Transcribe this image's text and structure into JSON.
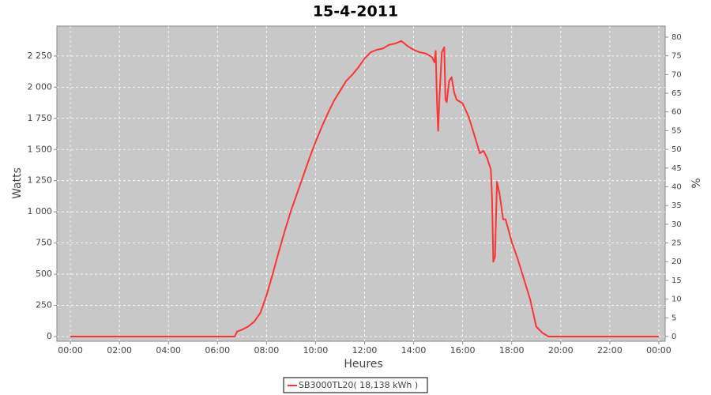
{
  "chart_data": {
    "type": "line",
    "title": "15-4-2011",
    "x_label": "Heures",
    "y_label": "Watts",
    "y2_label": "%",
    "x": [
      0,
      6.7,
      6.8,
      7.0,
      7.25,
      7.5,
      7.75,
      8.0,
      8.25,
      8.5,
      8.75,
      9.0,
      9.25,
      9.5,
      9.75,
      10.0,
      10.25,
      10.5,
      10.75,
      11.0,
      11.25,
      11.5,
      11.75,
      12.0,
      12.25,
      12.5,
      12.75,
      13.0,
      13.25,
      13.5,
      13.75,
      14.0,
      14.25,
      14.5,
      14.75,
      14.85,
      14.9,
      14.95,
      15.0,
      15.05,
      15.15,
      15.25,
      15.3,
      15.35,
      15.45,
      15.55,
      15.65,
      15.75,
      16.0,
      16.25,
      16.5,
      16.7,
      16.85,
      17.0,
      17.15,
      17.2,
      17.25,
      17.32,
      17.4,
      17.5,
      17.65,
      17.75,
      18.0,
      18.25,
      18.5,
      18.75,
      18.9,
      19.0,
      19.25,
      19.5,
      24
    ],
    "series": [
      {
        "name": "SB3000TL20( 18,138 kWh )",
        "color": "#ff3333",
        "values": [
          0,
          0,
          40,
          55,
          80,
          120,
          190,
          330,
          500,
          680,
          850,
          1010,
          1150,
          1290,
          1430,
          1560,
          1680,
          1790,
          1890,
          1970,
          2050,
          2100,
          2160,
          2230,
          2280,
          2300,
          2310,
          2340,
          2350,
          2370,
          2330,
          2300,
          2280,
          2270,
          2240,
          2200,
          2290,
          1900,
          1650,
          1900,
          2280,
          2320,
          1900,
          1880,
          2050,
          2080,
          1960,
          1900,
          1870,
          1760,
          1600,
          1470,
          1490,
          1430,
          1340,
          1100,
          600,
          640,
          1240,
          1150,
          940,
          940,
          760,
          620,
          460,
          300,
          170,
          80,
          30,
          0,
          0
        ]
      }
    ],
    "xlim": [
      -0.55,
      24.26
    ],
    "xticks": [
      {
        "value": 0,
        "label": "00:00"
      },
      {
        "value": 2,
        "label": "02:00"
      },
      {
        "value": 4,
        "label": "04:00"
      },
      {
        "value": 6,
        "label": "06:00"
      },
      {
        "value": 8,
        "label": "08:00"
      },
      {
        "value": 10,
        "label": "10:00"
      },
      {
        "value": 12,
        "label": "12:00"
      },
      {
        "value": 14,
        "label": "14:00"
      },
      {
        "value": 16,
        "label": "16:00"
      },
      {
        "value": 18,
        "label": "18:00"
      },
      {
        "value": 20,
        "label": "20:00"
      },
      {
        "value": 22,
        "label": "22:00"
      },
      {
        "value": 24,
        "label": "00:00"
      }
    ],
    "ylim": [
      -38,
      2490
    ],
    "yticks": [
      0,
      250,
      500,
      750,
      {
        "value": 1000,
        "label": "1 000"
      },
      {
        "value": 1250,
        "label": "1 250"
      },
      {
        "value": 1500,
        "label": "1 500"
      },
      {
        "value": 1750,
        "label": "1 750"
      },
      {
        "value": 2000,
        "label": "2 000"
      },
      {
        "value": 2250,
        "label": "2 250"
      }
    ],
    "y2lim": [
      -1.27,
      82.95
    ],
    "y2ticks": [
      0,
      5,
      10,
      15,
      20,
      25,
      30,
      35,
      40,
      45,
      50,
      55,
      60,
      65,
      70,
      75,
      80
    ],
    "grid": true
  }
}
